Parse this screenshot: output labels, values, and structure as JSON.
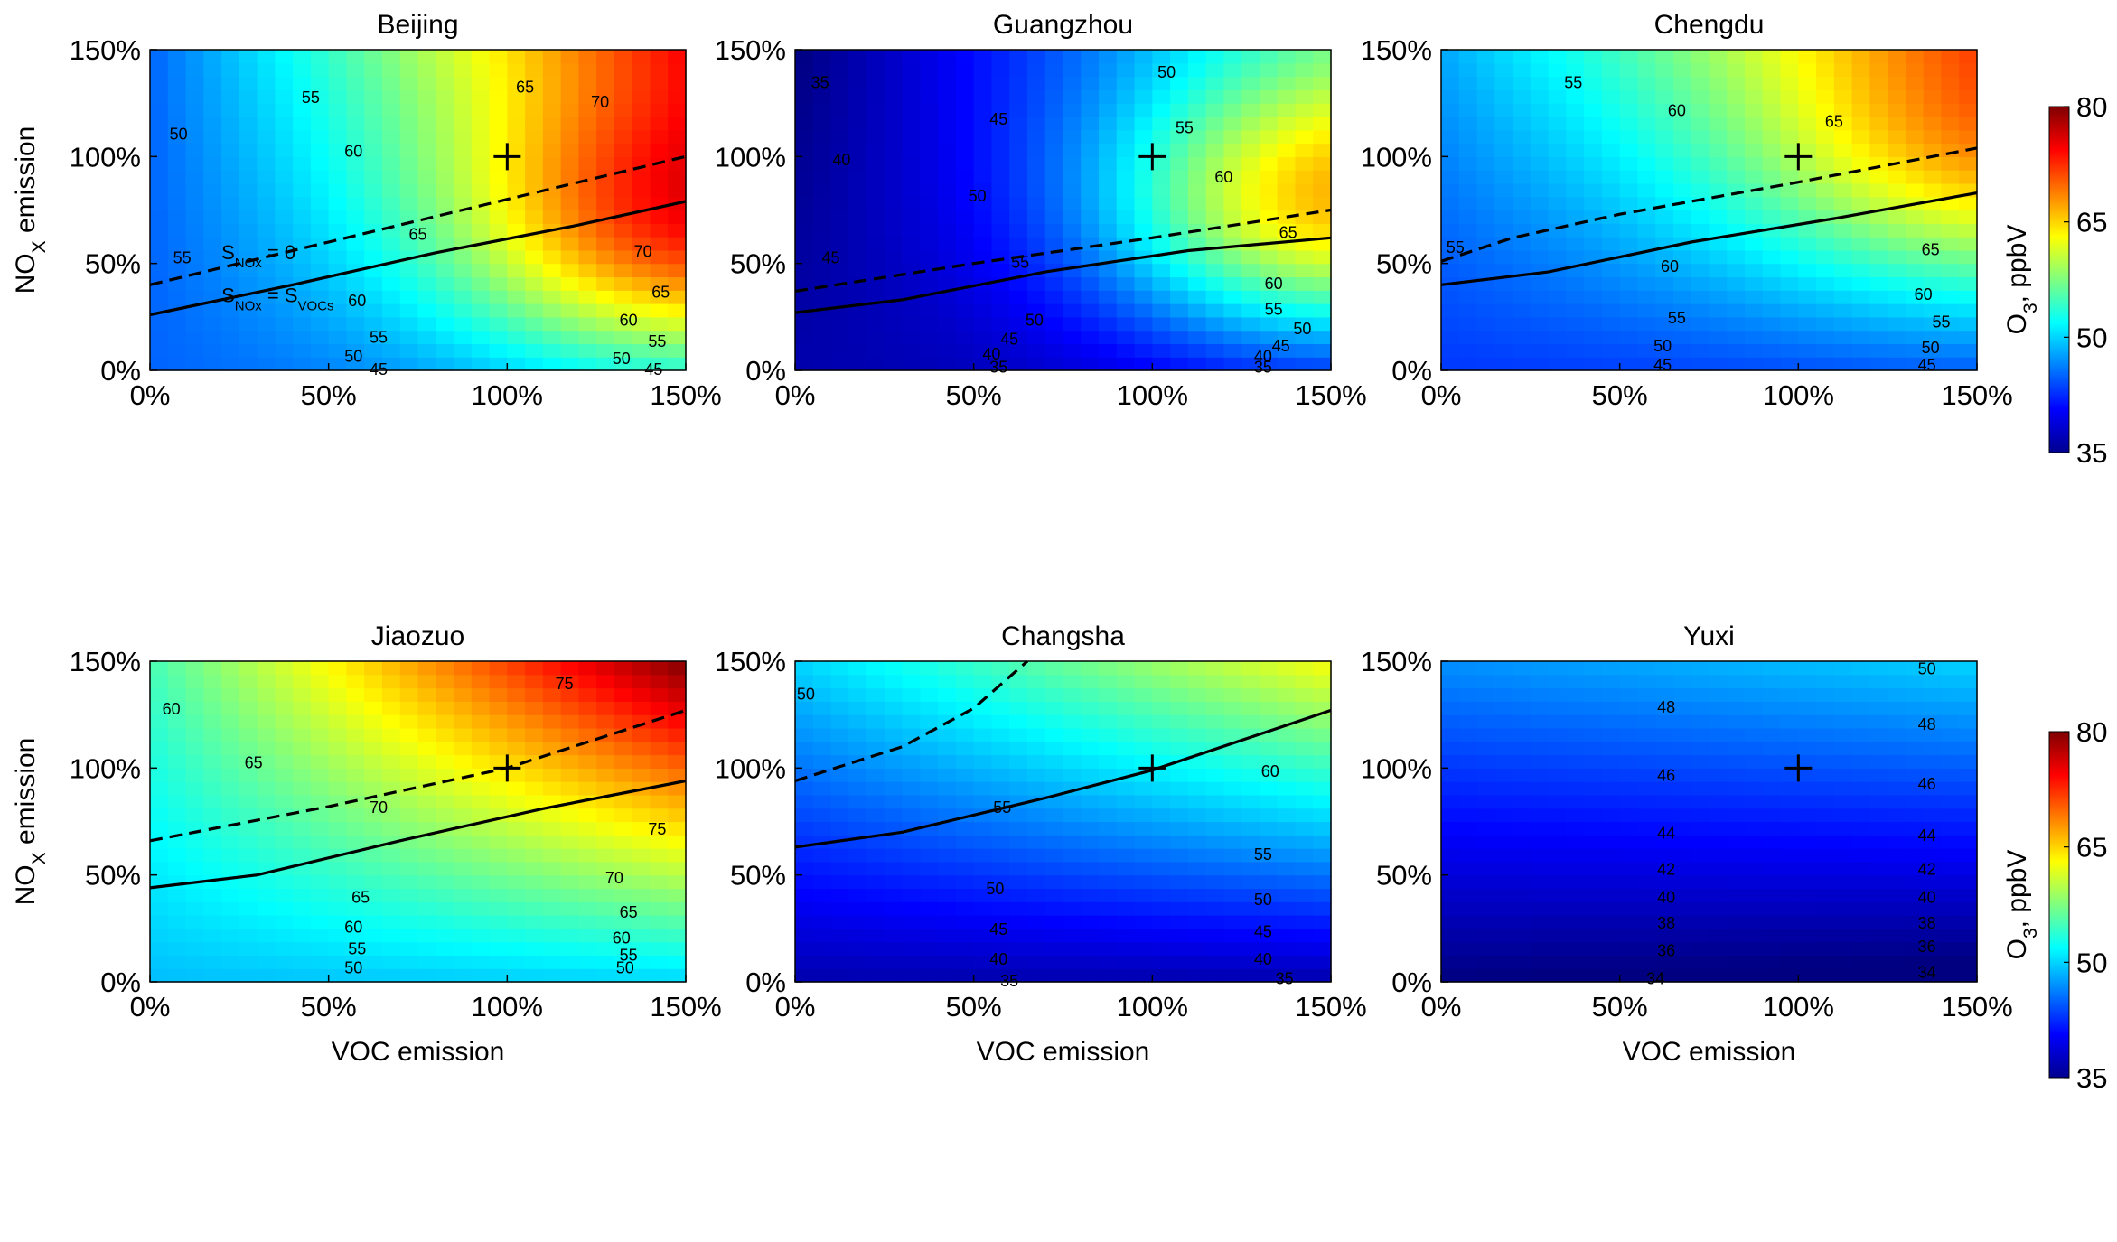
{
  "figure": {
    "colorbar": {
      "label": "O3, ppbV",
      "ticks": [
        "80",
        "65",
        "50",
        "35"
      ],
      "min": 35,
      "max": 80
    }
  },
  "chart_data": [
    {
      "type": "heatmap",
      "title": "Beijing",
      "xlabel": "",
      "ylabel": "NOx emission",
      "xlim": [
        0,
        150
      ],
      "ylim": [
        0,
        150
      ],
      "x_ticks": [
        "0%",
        "50%",
        "100%",
        "150%"
      ],
      "y_ticks": [
        "0%",
        "50%",
        "100%",
        "150%"
      ],
      "baseline_marker": [
        100,
        100
      ],
      "corner_values": {
        "bottom_left": 45,
        "bottom_right": 48,
        "top_left": 45,
        "top_right": 72
      },
      "peak": {
        "value": 74,
        "x": 150,
        "y": 65
      },
      "contour_labels": [
        {
          "text": "50",
          "x": 8,
          "y": 110
        },
        {
          "text": "55",
          "x": 45,
          "y": 127
        },
        {
          "text": "60",
          "x": 57,
          "y": 102
        },
        {
          "text": "65",
          "x": 105,
          "y": 132
        },
        {
          "text": "70",
          "x": 126,
          "y": 125
        },
        {
          "text": "55",
          "x": 9,
          "y": 52
        },
        {
          "text": "65",
          "x": 75,
          "y": 63
        },
        {
          "text": "70",
          "x": 138,
          "y": 55
        },
        {
          "text": "60",
          "x": 58,
          "y": 32
        },
        {
          "text": "65",
          "x": 143,
          "y": 36
        },
        {
          "text": "60",
          "x": 134,
          "y": 23
        },
        {
          "text": "55",
          "x": 64,
          "y": 15
        },
        {
          "text": "55",
          "x": 142,
          "y": 13
        },
        {
          "text": "50",
          "x": 57,
          "y": 6
        },
        {
          "text": "50",
          "x": 132,
          "y": 5
        },
        {
          "text": "45",
          "x": 64,
          "y": 0
        },
        {
          "text": "45",
          "x": 141,
          "y": 0
        }
      ],
      "line_zero": [
        [
          0,
          40
        ],
        [
          50,
          60
        ],
        [
          100,
          80
        ],
        [
          150,
          100
        ]
      ],
      "line_equal": [
        [
          0,
          26
        ],
        [
          40,
          40
        ],
        [
          80,
          55
        ],
        [
          120,
          68
        ],
        [
          150,
          79
        ]
      ],
      "annotations": [
        {
          "text": "S_NOx = 0",
          "x": 20,
          "y": 52
        },
        {
          "text": "S_NOx = S_VOCs",
          "x": 20,
          "y": 32
        }
      ]
    },
    {
      "type": "heatmap",
      "title": "Guangzhou",
      "xlabel": "",
      "ylabel": "",
      "xlim": [
        0,
        150
      ],
      "ylim": [
        0,
        150
      ],
      "x_ticks": [
        "0%",
        "50%",
        "100%",
        "150%"
      ],
      "y_ticks": [
        "0%",
        "50%",
        "100%",
        "150%"
      ],
      "baseline_marker": [
        100,
        100
      ],
      "corner_values": {
        "bottom_left": 37,
        "bottom_right": 38,
        "top_left": 35,
        "top_right": 52
      },
      "peak": {
        "value": 66,
        "x": 150,
        "y": 75
      },
      "contour_labels": [
        {
          "text": "35",
          "x": 7,
          "y": 134
        },
        {
          "text": "40",
          "x": 13,
          "y": 98
        },
        {
          "text": "45",
          "x": 57,
          "y": 117
        },
        {
          "text": "50",
          "x": 104,
          "y": 139
        },
        {
          "text": "55",
          "x": 109,
          "y": 113
        },
        {
          "text": "60",
          "x": 120,
          "y": 90
        },
        {
          "text": "50",
          "x": 51,
          "y": 81
        },
        {
          "text": "45",
          "x": 10,
          "y": 52
        },
        {
          "text": "55",
          "x": 63,
          "y": 50
        },
        {
          "text": "65",
          "x": 138,
          "y": 64
        },
        {
          "text": "60",
          "x": 134,
          "y": 40
        },
        {
          "text": "55",
          "x": 134,
          "y": 28
        },
        {
          "text": "50",
          "x": 67,
          "y": 23
        },
        {
          "text": "50",
          "x": 142,
          "y": 19
        },
        {
          "text": "45",
          "x": 60,
          "y": 14
        },
        {
          "text": "45",
          "x": 136,
          "y": 11
        },
        {
          "text": "40",
          "x": 55,
          "y": 7
        },
        {
          "text": "40",
          "x": 131,
          "y": 6
        },
        {
          "text": "35",
          "x": 57,
          "y": 1
        },
        {
          "text": "35",
          "x": 131,
          "y": 1
        }
      ],
      "line_zero": [
        [
          0,
          37
        ],
        [
          50,
          50
        ],
        [
          100,
          62
        ],
        [
          150,
          75
        ]
      ],
      "line_equal": [
        [
          0,
          27
        ],
        [
          30,
          33
        ],
        [
          70,
          46
        ],
        [
          110,
          56
        ],
        [
          150,
          62
        ]
      ],
      "annotations": []
    },
    {
      "type": "heatmap",
      "title": "Chengdu",
      "xlabel": "",
      "ylabel": "",
      "xlim": [
        0,
        150
      ],
      "ylim": [
        0,
        150
      ],
      "x_ticks": [
        "0%",
        "50%",
        "100%",
        "150%"
      ],
      "y_ticks": [
        "0%",
        "50%",
        "100%",
        "150%"
      ],
      "baseline_marker": [
        100,
        100
      ],
      "corner_values": {
        "bottom_left": 43,
        "bottom_right": 44,
        "top_left": 48,
        "top_right": 67
      },
      "peak": {
        "value": 68,
        "x": 150,
        "y": 100
      },
      "contour_labels": [
        {
          "text": "55",
          "x": 37,
          "y": 134
        },
        {
          "text": "60",
          "x": 66,
          "y": 121
        },
        {
          "text": "65",
          "x": 110,
          "y": 116
        },
        {
          "text": "55",
          "x": 4,
          "y": 57
        },
        {
          "text": "60",
          "x": 64,
          "y": 48
        },
        {
          "text": "65",
          "x": 137,
          "y": 56
        },
        {
          "text": "60",
          "x": 135,
          "y": 35
        },
        {
          "text": "55",
          "x": 66,
          "y": 24
        },
        {
          "text": "55",
          "x": 140,
          "y": 22
        },
        {
          "text": "50",
          "x": 62,
          "y": 11
        },
        {
          "text": "50",
          "x": 137,
          "y": 10
        },
        {
          "text": "45",
          "x": 62,
          "y": 2
        },
        {
          "text": "45",
          "x": 136,
          "y": 2
        }
      ],
      "line_zero": [
        [
          0,
          51
        ],
        [
          20,
          62
        ],
        [
          50,
          73
        ],
        [
          100,
          88
        ],
        [
          150,
          104
        ]
      ],
      "line_equal": [
        [
          0,
          40
        ],
        [
          30,
          46
        ],
        [
          70,
          60
        ],
        [
          110,
          71
        ],
        [
          150,
          83
        ]
      ],
      "annotations": []
    },
    {
      "type": "heatmap",
      "title": "Jiaozuo",
      "xlabel": "VOC emission",
      "ylabel": "NOx emission",
      "xlim": [
        0,
        150
      ],
      "ylim": [
        0,
        150
      ],
      "x_ticks": [
        "0%",
        "50%",
        "100%",
        "150%"
      ],
      "y_ticks": [
        "0%",
        "50%",
        "100%",
        "150%"
      ],
      "baseline_marker": [
        100,
        100
      ],
      "corner_values": {
        "bottom_left": 49,
        "bottom_right": 50,
        "top_left": 55,
        "top_right": 80
      },
      "peak": {
        "value": 80,
        "x": 150,
        "y": 150
      },
      "contour_labels": [
        {
          "text": "60",
          "x": 6,
          "y": 127
        },
        {
          "text": "65",
          "x": 29,
          "y": 102
        },
        {
          "text": "75",
          "x": 116,
          "y": 139
        },
        {
          "text": "70",
          "x": 64,
          "y": 81
        },
        {
          "text": "75",
          "x": 142,
          "y": 71
        },
        {
          "text": "70",
          "x": 130,
          "y": 48
        },
        {
          "text": "65",
          "x": 59,
          "y": 39
        },
        {
          "text": "65",
          "x": 134,
          "y": 32
        },
        {
          "text": "60",
          "x": 57,
          "y": 25
        },
        {
          "text": "60",
          "x": 132,
          "y": 20
        },
        {
          "text": "55",
          "x": 58,
          "y": 15
        },
        {
          "text": "55",
          "x": 134,
          "y": 12
        },
        {
          "text": "50",
          "x": 57,
          "y": 6
        },
        {
          "text": "50",
          "x": 133,
          "y": 6
        }
      ],
      "line_zero": [
        [
          0,
          66
        ],
        [
          50,
          82
        ],
        [
          100,
          100
        ],
        [
          150,
          127
        ]
      ],
      "line_equal": [
        [
          0,
          44
        ],
        [
          30,
          50
        ],
        [
          70,
          66
        ],
        [
          110,
          81
        ],
        [
          150,
          94
        ]
      ],
      "annotations": []
    },
    {
      "type": "heatmap",
      "title": "Changsha",
      "xlabel": "VOC emission",
      "ylabel": "",
      "xlim": [
        0,
        150
      ],
      "ylim": [
        0,
        150
      ],
      "x_ticks": [
        "0%",
        "50%",
        "100%",
        "150%"
      ],
      "y_ticks": [
        "0%",
        "50%",
        "100%",
        "150%"
      ],
      "baseline_marker": [
        100,
        100
      ],
      "corner_values": {
        "bottom_left": 37,
        "bottom_right": 37,
        "top_left": 50,
        "top_right": 63
      },
      "peak": {
        "value": 63,
        "x": 150,
        "y": 150
      },
      "contour_labels": [
        {
          "text": "50",
          "x": 3,
          "y": 134
        },
        {
          "text": "60",
          "x": 133,
          "y": 98
        },
        {
          "text": "55",
          "x": 58,
          "y": 81
        },
        {
          "text": "55",
          "x": 131,
          "y": 59
        },
        {
          "text": "50",
          "x": 56,
          "y": 43
        },
        {
          "text": "50",
          "x": 131,
          "y": 38
        },
        {
          "text": "45",
          "x": 57,
          "y": 24
        },
        {
          "text": "45",
          "x": 131,
          "y": 23
        },
        {
          "text": "40",
          "x": 57,
          "y": 10
        },
        {
          "text": "40",
          "x": 131,
          "y": 10
        },
        {
          "text": "35",
          "x": 60,
          "y": 0
        },
        {
          "text": "35",
          "x": 137,
          "y": 1
        }
      ],
      "line_zero": [
        [
          0,
          94
        ],
        [
          30,
          110
        ],
        [
          50,
          128
        ],
        [
          65,
          150
        ]
      ],
      "line_equal": [
        [
          0,
          63
        ],
        [
          30,
          70
        ],
        [
          70,
          86
        ],
        [
          100,
          99
        ],
        [
          150,
          127
        ]
      ],
      "annotations": []
    },
    {
      "type": "heatmap",
      "title": "Yuxi",
      "xlabel": "VOC emission",
      "ylabel": "",
      "xlim": [
        0,
        150
      ],
      "ylim": [
        0,
        150
      ],
      "x_ticks": [
        "0%",
        "50%",
        "100%",
        "150%"
      ],
      "y_ticks": [
        "0%",
        "50%",
        "100%",
        "150%"
      ],
      "baseline_marker": [
        100,
        100
      ],
      "corner_values": {
        "bottom_left": 35,
        "bottom_right": 34,
        "top_left": 47,
        "top_right": 50
      },
      "peak": {
        "value": 50,
        "x": 150,
        "y": 150
      },
      "contour_labels": [
        {
          "text": "50",
          "x": 136,
          "y": 146
        },
        {
          "text": "48",
          "x": 63,
          "y": 128
        },
        {
          "text": "48",
          "x": 136,
          "y": 120
        },
        {
          "text": "46",
          "x": 63,
          "y": 96
        },
        {
          "text": "46",
          "x": 136,
          "y": 92
        },
        {
          "text": "44",
          "x": 63,
          "y": 69
        },
        {
          "text": "44",
          "x": 136,
          "y": 68
        },
        {
          "text": "42",
          "x": 63,
          "y": 52
        },
        {
          "text": "42",
          "x": 136,
          "y": 52
        },
        {
          "text": "40",
          "x": 63,
          "y": 39
        },
        {
          "text": "40",
          "x": 136,
          "y": 39
        },
        {
          "text": "38",
          "x": 63,
          "y": 27
        },
        {
          "text": "38",
          "x": 136,
          "y": 27
        },
        {
          "text": "36",
          "x": 63,
          "y": 14
        },
        {
          "text": "36",
          "x": 136,
          "y": 16
        },
        {
          "text": "34",
          "x": 60,
          "y": 1
        },
        {
          "text": "34",
          "x": 136,
          "y": 4
        }
      ],
      "line_zero": [],
      "line_equal": [],
      "annotations": []
    }
  ]
}
